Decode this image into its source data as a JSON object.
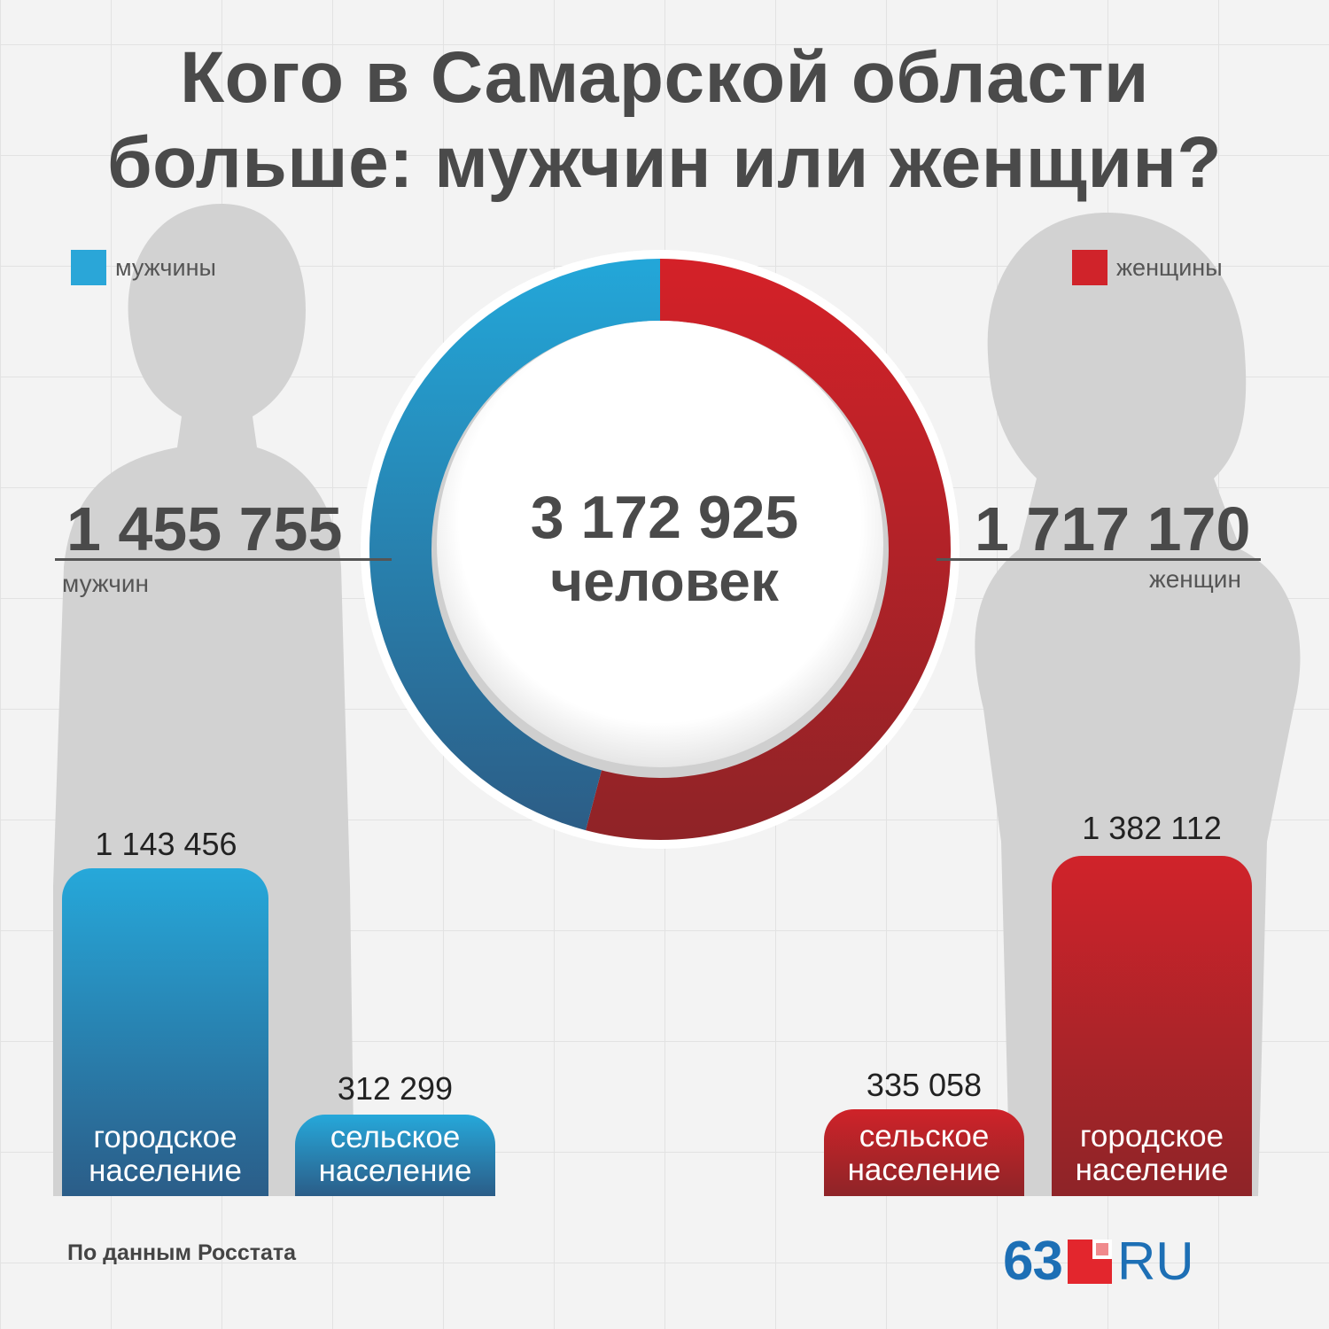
{
  "title": {
    "line1": "Кого в Самарской области",
    "line2": "больше: мужчин или женщин?"
  },
  "legend": {
    "men": {
      "label": "мужчины",
      "color": "#2aa6d8"
    },
    "women": {
      "label": "женщины",
      "color": "#d0232a"
    }
  },
  "totals": {
    "men_value": "1 455 755",
    "men_unit": "мужчин",
    "women_value": "1 717 170",
    "women_unit": "женщин",
    "all_value": "3 172 925",
    "all_unit": "человек"
  },
  "bars": {
    "men_urban": {
      "value": "1 143 456",
      "label_line1": "городское",
      "label_line2": "население"
    },
    "men_rural": {
      "value": "312 299",
      "label_line1": "сельское",
      "label_line2": "население"
    },
    "women_rural": {
      "value": "335 058",
      "label_line1": "сельское",
      "label_line2": "население"
    },
    "women_urban": {
      "value": "1 382 112",
      "label_line1": "городское",
      "label_line2": "население"
    }
  },
  "source": "По данным Росстата",
  "logo": {
    "number": "63",
    "suffix": "RU"
  },
  "chart_data": [
    {
      "type": "pie",
      "title": "",
      "categories": [
        "мужчины",
        "женщины"
      ],
      "values": [
        1455755,
        1717170
      ],
      "total": 3172925,
      "colors": [
        "#2aa6d8",
        "#d0232a"
      ]
    },
    {
      "type": "bar",
      "title": "",
      "categories": [
        "городское население (мужчины)",
        "сельское население (мужчины)",
        "сельское население (женщины)",
        "городское население (женщины)"
      ],
      "values": [
        1143456,
        312299,
        335058,
        1382112
      ],
      "colors": [
        "#2aa6d8",
        "#2aa6d8",
        "#d0232a",
        "#d0232a"
      ]
    }
  ]
}
